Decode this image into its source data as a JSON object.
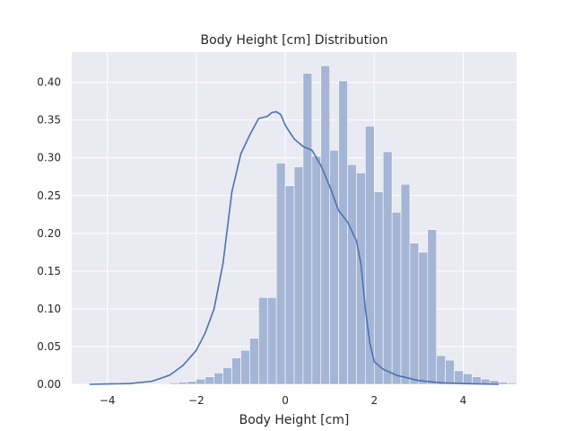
{
  "chart_data": {
    "type": "bar",
    "title": "Body Height [cm] Distribution",
    "xlabel": "Body Height [cm]",
    "ylabel": "",
    "xlim": [
      -4.8,
      5.2
    ],
    "ylim": [
      0,
      0.44
    ],
    "xticks": [
      -4,
      -2,
      0,
      2,
      4
    ],
    "xtick_labels": [
      "−4",
      "−2",
      "0",
      "2",
      "4"
    ],
    "yticks": [
      0.0,
      0.05,
      0.1,
      0.15,
      0.2,
      0.25,
      0.3,
      0.35,
      0.4
    ],
    "ytick_labels": [
      "0.00",
      "0.05",
      "0.10",
      "0.15",
      "0.20",
      "0.25",
      "0.30",
      "0.35",
      "0.40"
    ],
    "grid": true,
    "colors": {
      "background": "#eaeaf2",
      "grid": "#ffffff",
      "bars": "#a4b5d6",
      "kde": "#4c72b0"
    },
    "histogram": {
      "bin_edges_start": -4.4,
      "bin_width": 0.2,
      "values": [
        0.001,
        0.0,
        0.0,
        0.0,
        0.0,
        0.0,
        0.0,
        0.0,
        0.001,
        0.002,
        0.003,
        0.004,
        0.007,
        0.01,
        0.015,
        0.022,
        0.035,
        0.045,
        0.061,
        0.115,
        0.115,
        0.293,
        0.263,
        0.288,
        0.412,
        0.302,
        0.422,
        0.31,
        0.402,
        0.291,
        0.28,
        0.342,
        0.255,
        0.308,
        0.228,
        0.265,
        0.187,
        0.175,
        0.205,
        0.038,
        0.032,
        0.018,
        0.014,
        0.01,
        0.007,
        0.005,
        0.003,
        0.002
      ]
    },
    "series": [
      {
        "type": "kde",
        "x": [
          -4.4,
          -3.5,
          -3.0,
          -2.6,
          -2.3,
          -2.0,
          -1.8,
          -1.6,
          -1.4,
          -1.2,
          -1.0,
          -0.8,
          -0.6,
          -0.4,
          -0.3,
          -0.2,
          -0.1,
          0.0,
          0.2,
          0.4,
          0.6,
          0.8,
          1.0,
          1.2,
          1.4,
          1.6,
          1.7,
          1.8,
          1.9,
          2.0,
          2.2,
          2.5,
          3.0,
          3.5,
          4.0,
          4.8
        ],
        "y": [
          0.0,
          0.001,
          0.004,
          0.012,
          0.025,
          0.045,
          0.068,
          0.1,
          0.16,
          0.255,
          0.305,
          0.33,
          0.352,
          0.355,
          0.36,
          0.361,
          0.357,
          0.343,
          0.325,
          0.315,
          0.31,
          0.29,
          0.262,
          0.23,
          0.215,
          0.19,
          0.16,
          0.1,
          0.055,
          0.03,
          0.02,
          0.012,
          0.005,
          0.002,
          0.001,
          0.0
        ]
      }
    ]
  }
}
